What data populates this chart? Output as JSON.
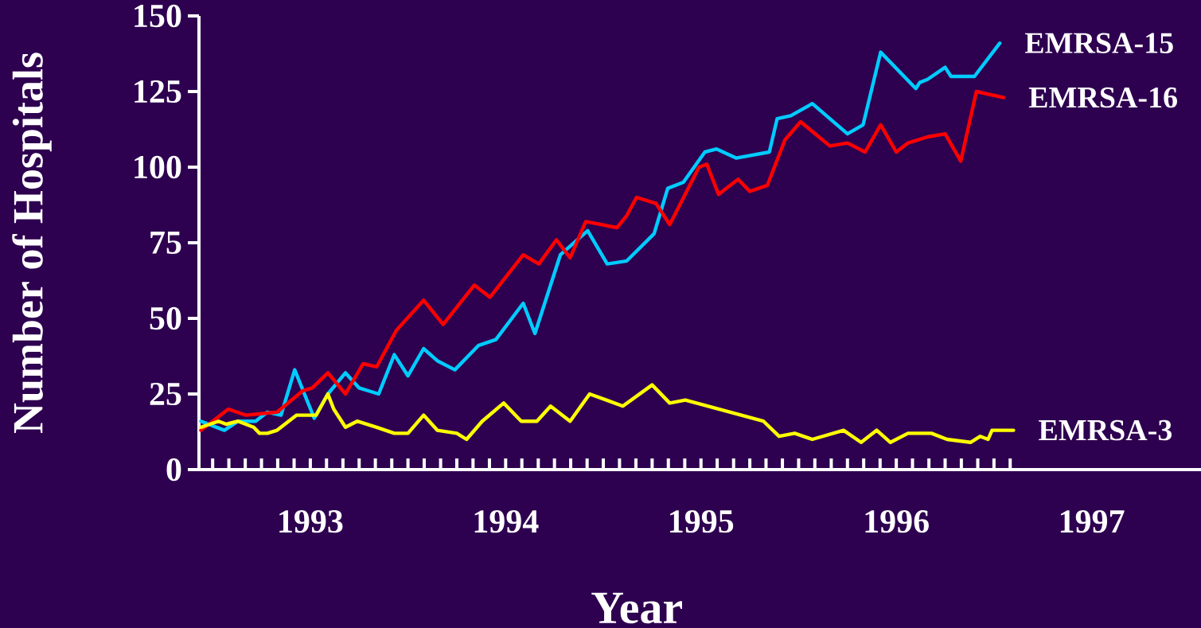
{
  "chart_data": {
    "type": "line",
    "xlabel": "Year",
    "ylabel": "Number of Hospitals",
    "xlim": [
      1992.43,
      1997.56
    ],
    "ylim": [
      0,
      150
    ],
    "yticks": [
      0,
      25,
      50,
      75,
      100,
      125,
      150
    ],
    "xticks": [
      1993,
      1994,
      1995,
      1996,
      1997,
      {
        "value": 1992.5,
        "label": null
      },
      {
        "value": 1992.583,
        "label": null
      },
      {
        "value": 1992.667,
        "label": null
      },
      {
        "value": 1992.75,
        "label": null
      },
      {
        "value": 1992.833,
        "label": null
      },
      {
        "value": 1992.917,
        "label": null
      },
      {
        "value": 1993.0,
        "label": null
      },
      {
        "value": 1993.083,
        "label": null
      },
      {
        "value": 1993.167,
        "label": null
      },
      {
        "value": 1993.25,
        "label": null
      },
      {
        "value": 1993.333,
        "label": null
      },
      {
        "value": 1993.417,
        "label": null
      },
      {
        "value": 1993.5,
        "label": null
      },
      {
        "value": 1993.583,
        "label": null
      },
      {
        "value": 1993.667,
        "label": null
      },
      {
        "value": 1993.75,
        "label": null
      },
      {
        "value": 1993.833,
        "label": null
      },
      {
        "value": 1993.917,
        "label": null
      },
      {
        "value": 1994.0,
        "label": null
      },
      {
        "value": 1994.083,
        "label": null
      },
      {
        "value": 1994.167,
        "label": null
      },
      {
        "value": 1994.25,
        "label": null
      },
      {
        "value": 1994.333,
        "label": null
      },
      {
        "value": 1994.417,
        "label": null
      },
      {
        "value": 1994.5,
        "label": null
      },
      {
        "value": 1994.583,
        "label": null
      },
      {
        "value": 1994.667,
        "label": null
      },
      {
        "value": 1994.75,
        "label": null
      },
      {
        "value": 1994.833,
        "label": null
      },
      {
        "value": 1994.917,
        "label": null
      },
      {
        "value": 1995.0,
        "label": null
      },
      {
        "value": 1995.083,
        "label": null
      },
      {
        "value": 1995.167,
        "label": null
      },
      {
        "value": 1995.25,
        "label": null
      },
      {
        "value": 1995.333,
        "label": null
      },
      {
        "value": 1995.417,
        "label": null
      },
      {
        "value": 1995.5,
        "label": null
      },
      {
        "value": 1995.583,
        "label": null
      },
      {
        "value": 1995.667,
        "label": null
      },
      {
        "value": 1995.75,
        "label": null
      },
      {
        "value": 1995.833,
        "label": null
      },
      {
        "value": 1995.917,
        "label": null
      },
      {
        "value": 1996.0,
        "label": null
      },
      {
        "value": 1996.083,
        "label": null
      },
      {
        "value": 1996.167,
        "label": null
      },
      {
        "value": 1996.25,
        "label": null
      },
      {
        "value": 1996.333,
        "label": null
      },
      {
        "value": 1996.417,
        "label": null
      },
      {
        "value": 1996.5,
        "label": null
      },
      {
        "value": 1996.583,
        "label": null
      }
    ],
    "marker": "none",
    "line_style": "solid",
    "series": [
      {
        "name": "EMRSA-15",
        "color": "#00ccff",
        "x": [
          1992.44,
          1992.56,
          1992.63,
          1992.72,
          1992.78,
          1992.85,
          1992.92,
          1993.02,
          1993.09,
          1993.18,
          1993.25,
          1993.35,
          1993.43,
          1993.5,
          1993.58,
          1993.65,
          1993.74,
          1993.86,
          1993.95,
          1994.09,
          1994.15,
          1994.28,
          1994.42,
          1994.52,
          1994.62,
          1994.76,
          1994.83,
          1994.91,
          1995.02,
          1995.08,
          1995.18,
          1995.35,
          1995.39,
          1995.46,
          1995.57,
          1995.75,
          1995.83,
          1995.92,
          1996.1,
          1996.12,
          1996.16,
          1996.25,
          1996.28,
          1996.4,
          1996.53
        ],
        "values": [
          16,
          13,
          16,
          16,
          19,
          18,
          33,
          17,
          25,
          32,
          27,
          25,
          38,
          31,
          40,
          36,
          33,
          41,
          43,
          55,
          45,
          71,
          79,
          68,
          69,
          78,
          93,
          95,
          105,
          106,
          103,
          105,
          116,
          117,
          121,
          111,
          114,
          138,
          126,
          128,
          129,
          133,
          130,
          130,
          141
        ]
      },
      {
        "name": "EMRSA-16",
        "color": "#ff0000",
        "x": [
          1992.44,
          1992.58,
          1992.67,
          1992.83,
          1992.96,
          1993.01,
          1993.09,
          1993.18,
          1993.27,
          1993.34,
          1993.44,
          1993.58,
          1993.68,
          1993.84,
          1993.92,
          1994.09,
          1994.17,
          1994.26,
          1994.33,
          1994.41,
          1994.57,
          1994.62,
          1994.67,
          1994.77,
          1994.84,
          1994.99,
          1995.03,
          1995.09,
          1995.19,
          1995.25,
          1995.34,
          1995.43,
          1995.51,
          1995.66,
          1995.75,
          1995.84,
          1995.92,
          1996.0,
          1996.06,
          1996.16,
          1996.25,
          1996.33,
          1996.41,
          1996.55
        ],
        "values": [
          13,
          20,
          18,
          19,
          26,
          27,
          32,
          25,
          35,
          34,
          46,
          56,
          48,
          61,
          57,
          71,
          68,
          76,
          70,
          82,
          80,
          84,
          90,
          88,
          81,
          100,
          101,
          91,
          96,
          92,
          94,
          109,
          115,
          107,
          108,
          105,
          114,
          105,
          108,
          110,
          111,
          102,
          125,
          123
        ]
      },
      {
        "name": "EMRSA-3",
        "color": "#ffff00",
        "x": [
          1992.44,
          1992.53,
          1992.57,
          1992.63,
          1992.71,
          1992.74,
          1992.78,
          1992.83,
          1992.93,
          1993.03,
          1993.09,
          1993.12,
          1993.18,
          1993.24,
          1993.34,
          1993.43,
          1993.5,
          1993.58,
          1993.65,
          1993.75,
          1993.8,
          1993.88,
          1993.99,
          1994.08,
          1994.16,
          1994.23,
          1994.33,
          1994.43,
          1994.6,
          1994.75,
          1994.84,
          1994.92,
          1995.32,
          1995.4,
          1995.48,
          1995.57,
          1995.73,
          1995.82,
          1995.9,
          1995.97,
          1996.06,
          1996.18,
          1996.26,
          1996.38,
          1996.43,
          1996.47,
          1996.49,
          1996.6
        ],
        "values": [
          14,
          16,
          15,
          16,
          14,
          12,
          12,
          13,
          18,
          18,
          25,
          20,
          14,
          16,
          14,
          12,
          12,
          18,
          13,
          12,
          10,
          16,
          22,
          16,
          16,
          21,
          16,
          25,
          21,
          28,
          22,
          23,
          16,
          11,
          12,
          10,
          13,
          9,
          13,
          9,
          12,
          12,
          10,
          9,
          11,
          10,
          13,
          13
        ]
      }
    ]
  }
}
